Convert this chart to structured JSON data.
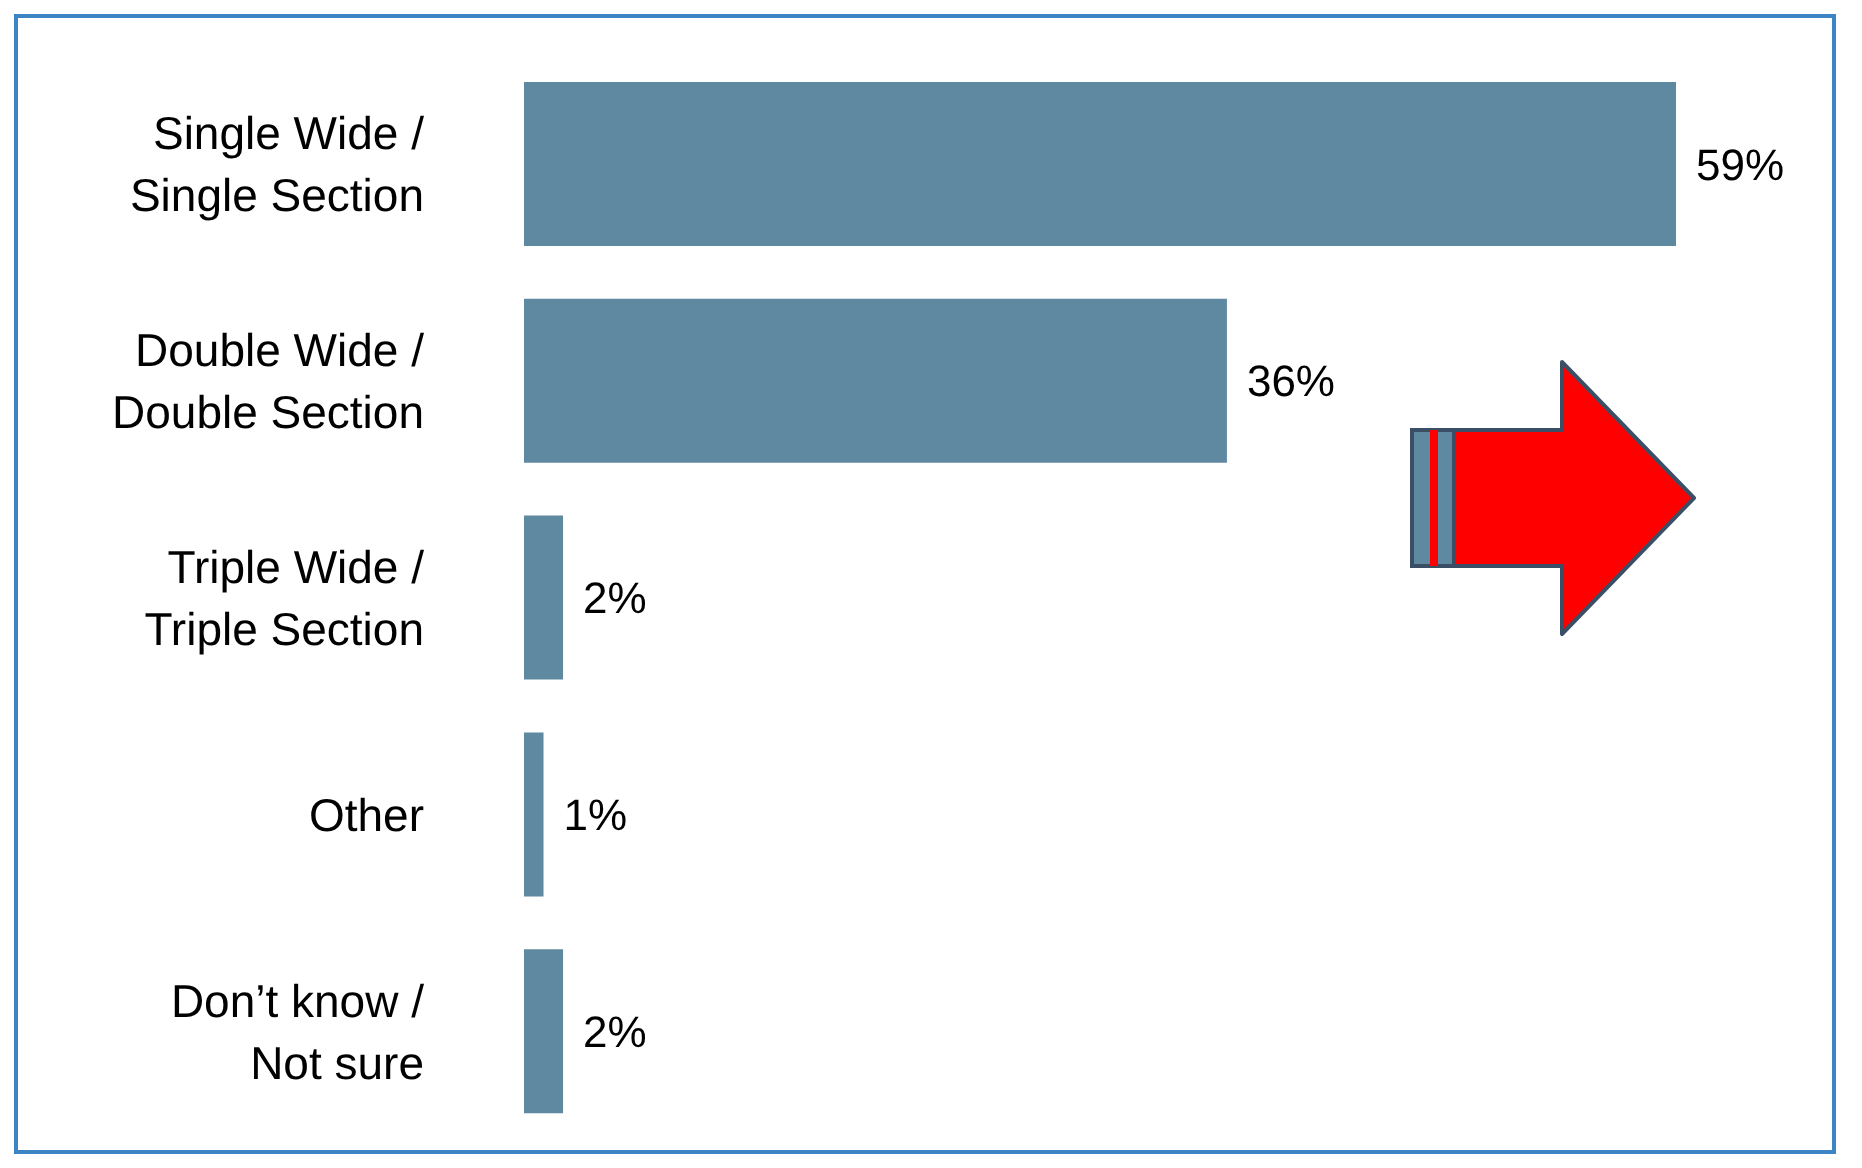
{
  "chart_data": {
    "type": "bar",
    "orientation": "horizontal",
    "categories": [
      "Single Wide / Single Section",
      "Double Wide / Double Section",
      "Triple Wide / Triple Section",
      "Other",
      "Don’t know / Not sure"
    ],
    "values": [
      59,
      36,
      2,
      1,
      2
    ],
    "value_labels": [
      "59%",
      "36%",
      "2%",
      "1%",
      "2%"
    ],
    "color": "#5f88a1",
    "data_labels": false
  }
}
